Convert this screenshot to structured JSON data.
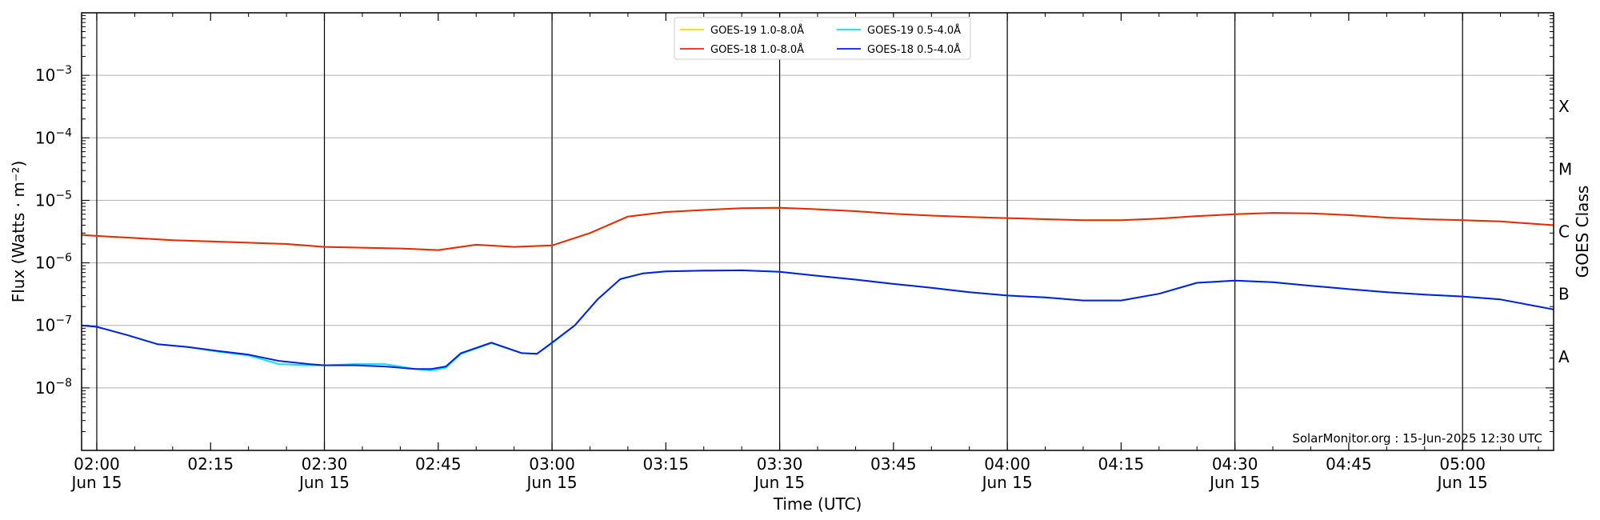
{
  "chart_data": {
    "type": "line",
    "xlabel": "Time (UTC)",
    "ylabel": "Flux (Watts · m⁻²)",
    "y2label": "GOES Class",
    "yscale": "log",
    "ylim": [
      1e-09,
      0.01
    ],
    "xlim": [
      "01:58",
      "05:12"
    ],
    "grid": "horizontal at decades; vertical lines at half-hours",
    "legend_position": "top-center",
    "x_ticks": [
      {
        "label": "02:00",
        "sub": "Jun 15"
      },
      {
        "label": "02:15",
        "sub": ""
      },
      {
        "label": "02:30",
        "sub": "Jun 15"
      },
      {
        "label": "02:45",
        "sub": ""
      },
      {
        "label": "03:00",
        "sub": "Jun 15"
      },
      {
        "label": "03:15",
        "sub": ""
      },
      {
        "label": "03:30",
        "sub": "Jun 15"
      },
      {
        "label": "03:45",
        "sub": ""
      },
      {
        "label": "04:00",
        "sub": "Jun 15"
      },
      {
        "label": "04:15",
        "sub": ""
      },
      {
        "label": "04:30",
        "sub": "Jun 15"
      },
      {
        "label": "04:45",
        "sub": ""
      },
      {
        "label": "05:00",
        "sub": "Jun 15"
      }
    ],
    "y_ticks": [
      {
        "exp": -8,
        "base": "10",
        "sup": "−8"
      },
      {
        "exp": -7,
        "base": "10",
        "sup": "−7"
      },
      {
        "exp": -6,
        "base": "10",
        "sup": "−6"
      },
      {
        "exp": -5,
        "base": "10",
        "sup": "−5"
      },
      {
        "exp": -4,
        "base": "10",
        "sup": "−4"
      },
      {
        "exp": -3,
        "base": "10",
        "sup": "−3"
      }
    ],
    "goes_classes": [
      {
        "label": "A",
        "exp": -7.5
      },
      {
        "label": "B",
        "exp": -6.5
      },
      {
        "label": "C",
        "exp": -5.5
      },
      {
        "label": "M",
        "exp": -4.5
      },
      {
        "label": "X",
        "exp": -3.5
      }
    ],
    "series": [
      {
        "name": "GOES-19 1.0-8.0Å",
        "color": "#ffd700",
        "x": [
          "01:58",
          "02:00",
          "02:05",
          "02:10",
          "02:15",
          "02:20",
          "02:25",
          "02:30",
          "02:35",
          "02:40",
          "02:45",
          "02:50",
          "02:55",
          "03:00",
          "03:05",
          "03:10",
          "03:15",
          "03:20",
          "03:25",
          "03:30",
          "03:35",
          "03:40",
          "03:45",
          "03:50",
          "03:55",
          "04:00",
          "04:05",
          "04:10",
          "04:15",
          "04:20",
          "04:25",
          "04:30",
          "04:35",
          "04:40",
          "04:45",
          "04:50",
          "04:55",
          "05:00",
          "05:05",
          "05:12"
        ],
        "values": [
          2.8e-06,
          2.7e-06,
          2.5e-06,
          2.3e-06,
          2.2e-06,
          2.1e-06,
          2e-06,
          1.8e-06,
          1.75e-06,
          1.7e-06,
          1.6e-06,
          1.95e-06,
          1.8e-06,
          1.9e-06,
          3e-06,
          5.5e-06,
          6.5e-06,
          7e-06,
          7.5e-06,
          7.6e-06,
          7.2e-06,
          6.7e-06,
          6.1e-06,
          5.7e-06,
          5.4e-06,
          5.2e-06,
          5e-06,
          4.8e-06,
          4.8e-06,
          5.1e-06,
          5.6e-06,
          6e-06,
          6.3e-06,
          6.2e-06,
          5.8e-06,
          5.3e-06,
          5e-06,
          4.8e-06,
          4.6e-06,
          4e-06
        ]
      },
      {
        "name": "GOES-18 1.0-8.0Å",
        "color": "#e8280c",
        "x": [
          "01:58",
          "02:00",
          "02:05",
          "02:10",
          "02:15",
          "02:20",
          "02:25",
          "02:30",
          "02:35",
          "02:40",
          "02:45",
          "02:50",
          "02:55",
          "03:00",
          "03:05",
          "03:10",
          "03:15",
          "03:20",
          "03:25",
          "03:30",
          "03:35",
          "03:40",
          "03:45",
          "03:50",
          "03:55",
          "04:00",
          "04:05",
          "04:10",
          "04:15",
          "04:20",
          "04:25",
          "04:30",
          "04:35",
          "04:40",
          "04:45",
          "04:50",
          "04:55",
          "05:00",
          "05:05",
          "05:12"
        ],
        "values": [
          2.8e-06,
          2.7e-06,
          2.5e-06,
          2.3e-06,
          2.2e-06,
          2.1e-06,
          2e-06,
          1.8e-06,
          1.75e-06,
          1.7e-06,
          1.6e-06,
          1.95e-06,
          1.8e-06,
          1.9e-06,
          3e-06,
          5.5e-06,
          6.5e-06,
          7e-06,
          7.5e-06,
          7.6e-06,
          7.2e-06,
          6.7e-06,
          6.1e-06,
          5.7e-06,
          5.4e-06,
          5.2e-06,
          5e-06,
          4.8e-06,
          4.8e-06,
          5.1e-06,
          5.6e-06,
          6e-06,
          6.3e-06,
          6.2e-06,
          5.8e-06,
          5.3e-06,
          5e-06,
          4.8e-06,
          4.6e-06,
          4e-06
        ]
      },
      {
        "name": "GOES-19 0.5-4.0Å",
        "color": "#00e5ee",
        "x": [
          "01:58",
          "02:00",
          "02:04",
          "02:08",
          "02:12",
          "02:16",
          "02:20",
          "02:24",
          "02:28",
          "02:30",
          "02:34",
          "02:38",
          "02:42",
          "02:44",
          "02:46",
          "02:48",
          "02:52",
          "02:56",
          "02:58",
          "03:00",
          "03:03",
          "03:06",
          "03:09",
          "03:12",
          "03:15",
          "03:20",
          "03:25",
          "03:30",
          "03:35",
          "03:40",
          "03:45",
          "03:50",
          "03:55",
          "04:00",
          "04:05",
          "04:10",
          "04:15",
          "04:20",
          "04:25",
          "04:30",
          "04:35",
          "04:40",
          "04:45",
          "04:50",
          "04:55",
          "05:00",
          "05:05",
          "05:12"
        ],
        "values": [
          1e-07,
          9.5e-08,
          7e-08,
          5e-08,
          4.5e-08,
          3.8e-08,
          3.3e-08,
          2.4e-08,
          2.3e-08,
          2.3e-08,
          2.4e-08,
          2.4e-08,
          2e-08,
          1.9e-08,
          2.1e-08,
          3.5e-08,
          5.2e-08,
          3.6e-08,
          3.5e-08,
          5.2e-08,
          1e-07,
          2.6e-07,
          5.5e-07,
          6.8e-07,
          7.3e-07,
          7.5e-07,
          7.6e-07,
          7.2e-07,
          6.2e-07,
          5.4e-07,
          4.6e-07,
          4e-07,
          3.4e-07,
          3e-07,
          2.8e-07,
          2.5e-07,
          2.5e-07,
          3.2e-07,
          4.8e-07,
          5.2e-07,
          4.9e-07,
          4.3e-07,
          3.8e-07,
          3.4e-07,
          3.1e-07,
          2.9e-07,
          2.6e-07,
          1.8e-07
        ]
      },
      {
        "name": "GOES-18 0.5-4.0Å",
        "color": "#0a1ee0",
        "x": [
          "01:58",
          "02:00",
          "02:04",
          "02:08",
          "02:12",
          "02:16",
          "02:20",
          "02:24",
          "02:28",
          "02:30",
          "02:34",
          "02:38",
          "02:42",
          "02:44",
          "02:46",
          "02:48",
          "02:52",
          "02:56",
          "02:58",
          "03:00",
          "03:03",
          "03:06",
          "03:09",
          "03:12",
          "03:15",
          "03:20",
          "03:25",
          "03:30",
          "03:35",
          "03:40",
          "03:45",
          "03:50",
          "03:55",
          "04:00",
          "04:05",
          "04:10",
          "04:15",
          "04:20",
          "04:25",
          "04:30",
          "04:35",
          "04:40",
          "04:45",
          "04:50",
          "04:55",
          "05:00",
          "05:05",
          "05:12"
        ],
        "values": [
          1e-07,
          9.5e-08,
          7e-08,
          5e-08,
          4.5e-08,
          3.9e-08,
          3.4e-08,
          2.7e-08,
          2.4e-08,
          2.3e-08,
          2.3e-08,
          2.2e-08,
          2e-08,
          2e-08,
          2.2e-08,
          3.6e-08,
          5.3e-08,
          3.6e-08,
          3.5e-08,
          5.3e-08,
          1e-07,
          2.6e-07,
          5.5e-07,
          6.8e-07,
          7.3e-07,
          7.5e-07,
          7.6e-07,
          7.2e-07,
          6.2e-07,
          5.4e-07,
          4.6e-07,
          4e-07,
          3.4e-07,
          3e-07,
          2.8e-07,
          2.5e-07,
          2.5e-07,
          3.2e-07,
          4.8e-07,
          5.2e-07,
          4.9e-07,
          4.3e-07,
          3.8e-07,
          3.4e-07,
          3.1e-07,
          2.9e-07,
          2.6e-07,
          1.8e-07
        ]
      }
    ],
    "footer": "SolarMonitor.org : 15-Jun-2025 12:30 UTC"
  }
}
